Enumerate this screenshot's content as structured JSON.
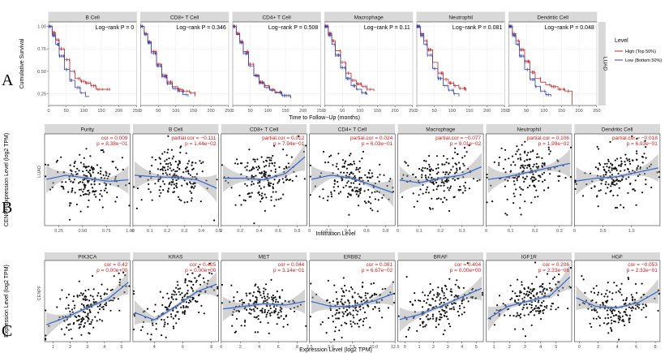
{
  "chart_data": [
    {
      "type": "line",
      "panel_label": "A",
      "kind": "kaplan-meier",
      "row_strip": "LUAD",
      "ylabel": "Cumulative Survival",
      "xlabel": "Time to Follow−Up (months)",
      "xlim": [
        0,
        250
      ],
      "ylim": [
        0.12,
        1.05
      ],
      "x_ticks": [
        0,
        50,
        100,
        150,
        200,
        250
      ],
      "x_tick_labels": [
        "0",
        "50",
        "100",
        "150",
        "200",
        "250"
      ],
      "y_ticks": [
        0.25,
        0.5,
        0.75,
        1.0
      ],
      "y_tick_labels": [
        "0.25",
        "0.50",
        "0.75",
        "1.00"
      ],
      "legend": {
        "title": "Level",
        "position": "right",
        "entries": [
          {
            "label": "High (Top 50%)",
            "color": "#c0282d"
          },
          {
            "label": "Low (Bottom 50%)",
            "color": "#3a46a6"
          }
        ]
      },
      "facets": [
        {
          "title": "B Cell",
          "stat": "Log−rank P = 0",
          "series": [
            {
              "name": "High (Top 50%)",
              "x": [
                0,
                10,
                20,
                30,
                45,
                60,
                75,
                90,
                105,
                120,
                135,
                150,
                175
              ],
              "y": [
                1.0,
                0.93,
                0.85,
                0.75,
                0.63,
                0.5,
                0.42,
                0.39,
                0.37,
                0.34,
                0.3,
                0.3,
                0.3
              ]
            },
            {
              "name": "Low (Bottom 50%)",
              "x": [
                0,
                10,
                20,
                30,
                45,
                60,
                75,
                90,
                105,
                115
              ],
              "y": [
                1.0,
                0.9,
                0.8,
                0.67,
                0.52,
                0.4,
                0.32,
                0.26,
                0.22,
                0.22
              ]
            }
          ]
        },
        {
          "title": "CD8+ T Cell",
          "stat": "Log−rank P = 0.346",
          "series": [
            {
              "name": "High (Top 50%)",
              "x": [
                0,
                10,
                20,
                30,
                45,
                60,
                75,
                90,
                105,
                120,
                140,
                155
              ],
              "y": [
                1.0,
                0.92,
                0.83,
                0.72,
                0.58,
                0.46,
                0.38,
                0.33,
                0.3,
                0.28,
                0.26,
                0.22
              ]
            },
            {
              "name": "Low (Bottom 50%)",
              "x": [
                0,
                10,
                20,
                30,
                45,
                60,
                75,
                90,
                105,
                120,
                135
              ],
              "y": [
                1.0,
                0.91,
                0.82,
                0.7,
                0.56,
                0.44,
                0.36,
                0.31,
                0.28,
                0.24,
                0.22
              ]
            }
          ]
        },
        {
          "title": "CD4+ T Cell",
          "stat": "Log−rank P = 0.508",
          "series": [
            {
              "name": "High (Top 50%)",
              "x": [
                0,
                10,
                20,
                30,
                45,
                60,
                75,
                90,
                105,
                120,
                140
              ],
              "y": [
                1.0,
                0.92,
                0.83,
                0.72,
                0.58,
                0.46,
                0.38,
                0.34,
                0.3,
                0.27,
                0.24
              ]
            },
            {
              "name": "Low (Bottom 50%)",
              "x": [
                0,
                10,
                20,
                30,
                45,
                60,
                75,
                90,
                105,
                120,
                140,
                165
              ],
              "y": [
                1.0,
                0.91,
                0.82,
                0.7,
                0.56,
                0.45,
                0.37,
                0.32,
                0.29,
                0.26,
                0.23,
                0.2
              ]
            }
          ]
        },
        {
          "title": "Macrophage",
          "stat": "Log−rank P = 0.11",
          "series": [
            {
              "name": "High (Top 50%)",
              "x": [
                0,
                10,
                20,
                30,
                45,
                60,
                75,
                90,
                105,
                120,
                140
              ],
              "y": [
                1.0,
                0.92,
                0.84,
                0.73,
                0.6,
                0.48,
                0.4,
                0.36,
                0.33,
                0.3,
                0.28
              ]
            },
            {
              "name": "Low (Bottom 50%)",
              "x": [
                0,
                10,
                20,
                30,
                45,
                60,
                75,
                90,
                105,
                120
              ],
              "y": [
                1.0,
                0.9,
                0.8,
                0.68,
                0.54,
                0.42,
                0.34,
                0.3,
                0.26,
                0.24
              ]
            }
          ]
        },
        {
          "title": "Neutrophil",
          "stat": "Log−rank P = 0.081",
          "series": [
            {
              "name": "High (Top 50%)",
              "x": [
                0,
                10,
                20,
                30,
                45,
                60,
                75,
                90,
                105,
                120,
                140
              ],
              "y": [
                1.0,
                0.92,
                0.84,
                0.74,
                0.6,
                0.48,
                0.41,
                0.37,
                0.34,
                0.31,
                0.28
              ]
            },
            {
              "name": "Low (Bottom 50%)",
              "x": [
                0,
                10,
                20,
                30,
                45,
                60,
                75,
                90,
                105,
                120
              ],
              "y": [
                1.0,
                0.9,
                0.8,
                0.68,
                0.53,
                0.42,
                0.34,
                0.29,
                0.25,
                0.22
              ]
            }
          ]
        },
        {
          "title": "Dendritic Cell",
          "stat": "Log−rank P = 0.048",
          "series": [
            {
              "name": "High (Top 50%)",
              "x": [
                0,
                10,
                20,
                30,
                45,
                60,
                75,
                90,
                105,
                120,
                140,
                160,
                180
              ],
              "y": [
                1.0,
                0.92,
                0.84,
                0.74,
                0.61,
                0.49,
                0.42,
                0.38,
                0.35,
                0.33,
                0.3,
                0.28,
                0.13
              ]
            },
            {
              "name": "Low (Bottom 50%)",
              "x": [
                0,
                10,
                20,
                30,
                45,
                60,
                75,
                90,
                105,
                120
              ],
              "y": [
                1.0,
                0.9,
                0.8,
                0.67,
                0.52,
                0.41,
                0.33,
                0.28,
                0.24,
                0.22
              ]
            }
          ]
        }
      ]
    },
    {
      "type": "scatter",
      "panel_label": "B",
      "row_strip": "LUAD",
      "ylabel": "CENPF Expression Level (log2 TPM)",
      "xlabel": "Infiltration Level",
      "facets": [
        {
          "title": "Purity",
          "stats": [
            "cor = 0.009",
            "p = 8.38e−01"
          ],
          "xlim": [
            0.1,
            1.0
          ],
          "x_ticks": [
            0.25,
            0.5,
            0.75,
            1.0
          ],
          "x_tick_labels": [
            "0.25",
            "0.50",
            "0.75",
            "1.00"
          ],
          "trend": [
            3.0,
            3.3,
            3.1,
            2.9,
            3.0
          ]
        },
        {
          "title": "B Cell",
          "stats": [
            "partial.cor = −0.111",
            "p = 1.44e−02"
          ],
          "xlim": [
            0.0,
            0.5
          ],
          "x_ticks": [
            0.0,
            0.1,
            0.2,
            0.3,
            0.4,
            0.5
          ],
          "x_tick_labels": [
            "0",
            "0.1",
            "0.2",
            "0.3",
            "0.4",
            "0.5"
          ],
          "trend": [
            3.3,
            3.2,
            3.15,
            3.0,
            2.4
          ]
        },
        {
          "title": "CD8+ T Cell",
          "stats": [
            "partial.cor = 0.012",
            "p = 7.94e−01"
          ],
          "xlim": [
            0.0,
            0.9
          ],
          "x_ticks": [
            0.0,
            0.2,
            0.4,
            0.6,
            0.8
          ],
          "x_tick_labels": [
            "0",
            "0.2",
            "0.4",
            "0.6",
            "0.8"
          ],
          "trend": [
            3.1,
            3.1,
            3.0,
            3.4,
            4.6
          ]
        },
        {
          "title": "CD4+ T Cell",
          "stats": [
            "partial.cor = 0.024",
            "p = 6.03e−01"
          ],
          "xlim": [
            0.0,
            0.9
          ],
          "x_ticks": [
            0.0,
            0.2,
            0.4,
            0.6,
            0.8
          ],
          "x_tick_labels": [
            "0",
            "0.2",
            "0.4",
            "0.6",
            "0.8"
          ],
          "trend": [
            3.0,
            3.3,
            3.1,
            2.6,
            2.1
          ]
        },
        {
          "title": "Macrophage",
          "stats": [
            "partial.cor = −0.077",
            "p = 9.01e−02"
          ],
          "xlim": [
            0.0,
            0.4
          ],
          "x_ticks": [
            0.0,
            0.1,
            0.2,
            0.3
          ],
          "x_tick_labels": [
            "0",
            "0.1",
            "0.2",
            "0.3"
          ],
          "trend": [
            3.0,
            2.8,
            3.1,
            3.3,
            3.9
          ]
        },
        {
          "title": "Neutrophil",
          "stats": [
            "partial.cor = 0.106",
            "p = 1.99e−02"
          ],
          "xlim": [
            0.0,
            0.35
          ],
          "x_ticks": [
            0.0,
            0.1,
            0.2,
            0.3
          ],
          "x_tick_labels": [
            "0",
            "0.1",
            "0.2",
            "0.3"
          ],
          "trend": [
            3.0,
            3.2,
            3.5,
            3.8,
            4.1
          ]
        },
        {
          "title": "Dendritic Cell",
          "stats": [
            "partial.cor = −0.018",
            "p = 6.93e−01"
          ],
          "xlim": [
            0.0,
            1.5
          ],
          "x_ticks": [
            0.0,
            0.5,
            1.0
          ],
          "x_tick_labels": [
            "0",
            "0.5",
            "1.0"
          ],
          "trend": [
            2.9,
            3.1,
            3.2,
            3.5,
            3.8
          ]
        }
      ]
    },
    {
      "type": "scatter",
      "panel_label": "C",
      "row_strip": "CENPF",
      "ylabel": "Expression Level (log2 TPM)",
      "xlabel": "Expression Level (log2 TPM)",
      "facets": [
        {
          "title": "PIK3CA",
          "stats": [
            "cor = 0.42",
            "p = 0.00e+00"
          ],
          "xlim": [
            0.5,
            5.5
          ],
          "x_ticks": [
            1,
            2,
            3,
            4,
            5
          ],
          "x_tick_labels": [
            "1",
            "2",
            "3",
            "4",
            "5"
          ],
          "trend": [
            1.2,
            1.8,
            2.5,
            3.2,
            4.5
          ]
        },
        {
          "title": "KRAS",
          "stats": [
            "cor = 0.425",
            "p = 0.00e+00"
          ],
          "xlim": [
            2.5,
            8.5
          ],
          "x_ticks": [
            4,
            6,
            8
          ],
          "x_tick_labels": [
            "4",
            "6",
            "8"
          ],
          "trend": [
            2.2,
            1.6,
            2.6,
            3.7,
            4.3
          ]
        },
        {
          "title": "MET",
          "stats": [
            "cor = 0.044",
            "p = 3.14e−01"
          ],
          "xlim": [
            0,
            9
          ],
          "x_ticks": [
            0,
            2,
            4,
            6,
            8
          ],
          "x_tick_labels": [
            "0",
            "2",
            "4",
            "6",
            "8"
          ],
          "trend": [
            2.4,
            2.6,
            2.8,
            2.7,
            3.0
          ]
        },
        {
          "title": "ERBB2",
          "stats": [
            "cor = 0.081",
            "p = 6.67e−02"
          ],
          "xlim": [
            2.5,
            12.5
          ],
          "x_ticks": [
            2.5,
            5.0,
            7.5,
            10.0,
            12.5
          ],
          "x_tick_labels": [
            "2.5",
            "5.0",
            "7.5",
            "10.0",
            "12.5"
          ],
          "trend": [
            3.0,
            2.6,
            2.6,
            3.0,
            3.6
          ]
        },
        {
          "title": "BRAF",
          "stats": [
            "cor = 0.404",
            "p = 0.00e+00"
          ],
          "xlim": [
            -0.5,
            5.5
          ],
          "x_ticks": [
            0,
            1,
            2,
            3,
            4,
            5
          ],
          "x_tick_labels": [
            "0",
            "1",
            "2",
            "3",
            "4",
            "5"
          ],
          "trend": [
            1.6,
            2.0,
            2.6,
            3.3,
            4.0
          ]
        },
        {
          "title": "IGF1R",
          "stats": [
            "cor = 0.206",
            "p = 2.33e−06"
          ],
          "xlim": [
            0.5,
            6
          ],
          "x_ticks": [
            1,
            2,
            3,
            4,
            5
          ],
          "x_tick_labels": [
            "1",
            "2",
            "3",
            "4",
            "5"
          ],
          "trend": [
            1.6,
            2.6,
            3.0,
            3.4,
            4.9
          ]
        },
        {
          "title": "HGF",
          "stats": [
            "cor = −0.053",
            "p = 2.33e−01"
          ],
          "xlim": [
            -0.5,
            8.5
          ],
          "x_ticks": [
            0,
            2,
            4,
            6,
            8
          ],
          "x_tick_labels": [
            "0",
            "2",
            "4",
            "6",
            "8"
          ],
          "trend": [
            3.3,
            2.6,
            2.5,
            2.9,
            3.8
          ]
        }
      ]
    }
  ]
}
